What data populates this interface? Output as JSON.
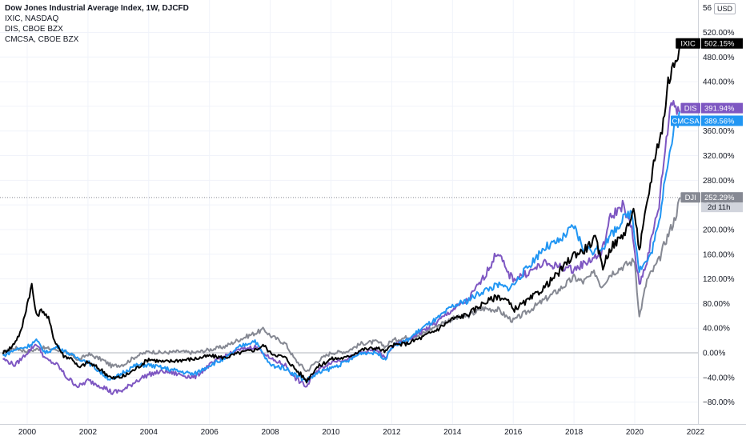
{
  "legend": {
    "main": "Dow Jones Industrial Average Index, 1W, DJCFD",
    "items": [
      "IXIC, NASDAQ",
      "DIS, CBOE BZX",
      "CMCSA, CBOE BZX"
    ]
  },
  "currency_label": "USD",
  "top_partial_tick": "56",
  "last_x_label": "2022",
  "price_tags": [
    {
      "symbol": "IXIC",
      "value": "502.15%",
      "bg": "#000000",
      "color": "#ffffff"
    },
    {
      "symbol": "DIS",
      "value": "391.94%",
      "bg": "#7e57c2",
      "color": "#ffffff"
    },
    {
      "symbol": "CMCSA",
      "value": "389.56%",
      "bg": "#2196f3",
      "color": "#ffffff"
    },
    {
      "symbol": "DJI",
      "value": "252.29%",
      "bg": "#868993",
      "color": "#ffffff",
      "sub": "2d 11h"
    }
  ],
  "chart_data": {
    "type": "line",
    "ylabel_unit": "%",
    "ylim": [
      -100,
      560
    ],
    "xlim": [
      1999.2,
      2022
    ],
    "y_ticks": [
      "520.00%",
      "480.00%",
      "440.00%",
      "400.00%",
      "360.00%",
      "320.00%",
      "280.00%",
      "240.00%",
      "200.00%",
      "160.00%",
      "120.00%",
      "80.00%",
      "40.00%",
      "0.00%",
      "−40.00%",
      "−80.00%"
    ],
    "y_tick_values": [
      520,
      480,
      440,
      400,
      360,
      320,
      280,
      240,
      200,
      160,
      120,
      80,
      40,
      0,
      -40,
      -80
    ],
    "x_ticks": [
      "2000",
      "2002",
      "2004",
      "2006",
      "2008",
      "2010",
      "2012",
      "2014",
      "2016",
      "2018",
      "2020"
    ],
    "x_tick_values": [
      2000,
      2002,
      2004,
      2006,
      2008,
      2010,
      2012,
      2014,
      2016,
      2018,
      2020
    ],
    "grid": true,
    "series": [
      {
        "name": "DJI",
        "color": "#868993",
        "points": [
          [
            1999.2,
            0
          ],
          [
            1999.6,
            8
          ],
          [
            2000.0,
            2
          ],
          [
            2000.5,
            8
          ],
          [
            2001.0,
            5
          ],
          [
            2001.5,
            -5
          ],
          [
            2001.7,
            -12
          ],
          [
            2002.0,
            -2
          ],
          [
            2002.5,
            -12
          ],
          [
            2002.8,
            -22
          ],
          [
            2003.2,
            -18
          ],
          [
            2003.6,
            -5
          ],
          [
            2004.0,
            2
          ],
          [
            2004.5,
            0
          ],
          [
            2005.0,
            2
          ],
          [
            2005.5,
            0
          ],
          [
            2006.0,
            5
          ],
          [
            2006.5,
            10
          ],
          [
            2007.0,
            22
          ],
          [
            2007.5,
            32
          ],
          [
            2007.8,
            38
          ],
          [
            2008.0,
            28
          ],
          [
            2008.5,
            15
          ],
          [
            2008.8,
            -10
          ],
          [
            2009.2,
            -30
          ],
          [
            2009.5,
            -15
          ],
          [
            2010.0,
            0
          ],
          [
            2010.5,
            2
          ],
          [
            2011.0,
            15
          ],
          [
            2011.5,
            18
          ],
          [
            2011.8,
            10
          ],
          [
            2012.0,
            20
          ],
          [
            2012.5,
            25
          ],
          [
            2013.0,
            30
          ],
          [
            2013.5,
            45
          ],
          [
            2014.0,
            55
          ],
          [
            2014.5,
            60
          ],
          [
            2015.0,
            72
          ],
          [
            2015.5,
            70
          ],
          [
            2015.8,
            58
          ],
          [
            2016.0,
            52
          ],
          [
            2016.5,
            68
          ],
          [
            2017.0,
            85
          ],
          [
            2017.5,
            102
          ],
          [
            2018.0,
            122
          ],
          [
            2018.3,
            115
          ],
          [
            2018.7,
            130
          ],
          [
            2018.9,
            108
          ],
          [
            2019.2,
            128
          ],
          [
            2019.6,
            140
          ],
          [
            2020.0,
            150
          ],
          [
            2020.15,
            58
          ],
          [
            2020.4,
            118
          ],
          [
            2020.8,
            150
          ],
          [
            2021.0,
            180
          ],
          [
            2021.3,
            215
          ],
          [
            2021.5,
            252
          ]
        ]
      },
      {
        "name": "IXIC",
        "color": "#000000",
        "points": [
          [
            1999.2,
            0
          ],
          [
            1999.5,
            10
          ],
          [
            1999.8,
            35
          ],
          [
            2000.0,
            80
          ],
          [
            2000.15,
            110
          ],
          [
            2000.3,
            60
          ],
          [
            2000.5,
            70
          ],
          [
            2000.7,
            55
          ],
          [
            2000.9,
            20
          ],
          [
            2001.2,
            -5
          ],
          [
            2001.5,
            -10
          ],
          [
            2001.7,
            -25
          ],
          [
            2002.0,
            -15
          ],
          [
            2002.5,
            -30
          ],
          [
            2002.8,
            -42
          ],
          [
            2003.2,
            -38
          ],
          [
            2003.6,
            -25
          ],
          [
            2004.0,
            -10
          ],
          [
            2004.5,
            -15
          ],
          [
            2005.0,
            -12
          ],
          [
            2005.5,
            -10
          ],
          [
            2006.0,
            -5
          ],
          [
            2006.5,
            -8
          ],
          [
            2007.0,
            0
          ],
          [
            2007.5,
            5
          ],
          [
            2007.8,
            12
          ],
          [
            2008.0,
            0
          ],
          [
            2008.5,
            -8
          ],
          [
            2008.8,
            -25
          ],
          [
            2009.2,
            -45
          ],
          [
            2009.5,
            -25
          ],
          [
            2010.0,
            -10
          ],
          [
            2010.5,
            -8
          ],
          [
            2011.0,
            5
          ],
          [
            2011.5,
            8
          ],
          [
            2011.8,
            2
          ],
          [
            2012.0,
            12
          ],
          [
            2012.5,
            15
          ],
          [
            2013.0,
            25
          ],
          [
            2013.5,
            38
          ],
          [
            2014.0,
            55
          ],
          [
            2014.5,
            62
          ],
          [
            2015.0,
            80
          ],
          [
            2015.5,
            92
          ],
          [
            2015.8,
            85
          ],
          [
            2016.0,
            70
          ],
          [
            2016.5,
            85
          ],
          [
            2017.0,
            105
          ],
          [
            2017.5,
            130
          ],
          [
            2018.0,
            160
          ],
          [
            2018.3,
            165
          ],
          [
            2018.7,
            185
          ],
          [
            2018.95,
            140
          ],
          [
            2019.2,
            170
          ],
          [
            2019.6,
            190
          ],
          [
            2020.0,
            230
          ],
          [
            2020.15,
            165
          ],
          [
            2020.4,
            240
          ],
          [
            2020.7,
            330
          ],
          [
            2020.9,
            360
          ],
          [
            2021.1,
            440
          ],
          [
            2021.3,
            470
          ],
          [
            2021.5,
            502
          ]
        ]
      },
      {
        "name": "DIS",
        "color": "#7e57c2",
        "points": [
          [
            1999.2,
            -10
          ],
          [
            1999.6,
            -20
          ],
          [
            2000.0,
            0
          ],
          [
            2000.3,
            15
          ],
          [
            2000.6,
            -10
          ],
          [
            2001.0,
            -20
          ],
          [
            2001.3,
            -40
          ],
          [
            2001.7,
            -55
          ],
          [
            2002.0,
            -45
          ],
          [
            2002.5,
            -55
          ],
          [
            2002.8,
            -65
          ],
          [
            2003.2,
            -60
          ],
          [
            2003.6,
            -45
          ],
          [
            2004.0,
            -35
          ],
          [
            2004.5,
            -30
          ],
          [
            2005.0,
            -35
          ],
          [
            2005.5,
            -40
          ],
          [
            2006.0,
            -20
          ],
          [
            2006.5,
            -5
          ],
          [
            2007.0,
            5
          ],
          [
            2007.5,
            10
          ],
          [
            2007.8,
            0
          ],
          [
            2008.0,
            -10
          ],
          [
            2008.5,
            -20
          ],
          [
            2008.8,
            -40
          ],
          [
            2009.2,
            -55
          ],
          [
            2009.5,
            -30
          ],
          [
            2010.0,
            -15
          ],
          [
            2010.5,
            -10
          ],
          [
            2011.0,
            0
          ],
          [
            2011.5,
            5
          ],
          [
            2011.8,
            -10
          ],
          [
            2012.0,
            10
          ],
          [
            2012.5,
            20
          ],
          [
            2013.0,
            35
          ],
          [
            2013.5,
            50
          ],
          [
            2014.0,
            70
          ],
          [
            2014.5,
            85
          ],
          [
            2015.0,
            120
          ],
          [
            2015.5,
            165
          ],
          [
            2015.8,
            130
          ],
          [
            2016.0,
            120
          ],
          [
            2016.5,
            130
          ],
          [
            2017.0,
            145
          ],
          [
            2017.5,
            140
          ],
          [
            2018.0,
            135
          ],
          [
            2018.5,
            150
          ],
          [
            2018.9,
            160
          ],
          [
            2019.2,
            220
          ],
          [
            2019.6,
            240
          ],
          [
            2019.9,
            200
          ],
          [
            2020.15,
            110
          ],
          [
            2020.4,
            150
          ],
          [
            2020.8,
            240
          ],
          [
            2021.0,
            330
          ],
          [
            2021.2,
            410
          ],
          [
            2021.5,
            392
          ]
        ]
      },
      {
        "name": "CMCSA",
        "color": "#2196f3",
        "points": [
          [
            1999.2,
            -5
          ],
          [
            1999.6,
            5
          ],
          [
            2000.0,
            10
          ],
          [
            2000.3,
            20
          ],
          [
            2000.6,
            0
          ],
          [
            2001.0,
            10
          ],
          [
            2001.5,
            -5
          ],
          [
            2002.0,
            -15
          ],
          [
            2002.5,
            -35
          ],
          [
            2002.8,
            -45
          ],
          [
            2003.2,
            -30
          ],
          [
            2003.6,
            -20
          ],
          [
            2004.0,
            -20
          ],
          [
            2004.5,
            -25
          ],
          [
            2005.0,
            -30
          ],
          [
            2005.5,
            -35
          ],
          [
            2006.0,
            -20
          ],
          [
            2006.5,
            -10
          ],
          [
            2007.0,
            10
          ],
          [
            2007.5,
            20
          ],
          [
            2007.8,
            -5
          ],
          [
            2008.0,
            -20
          ],
          [
            2008.5,
            -25
          ],
          [
            2008.8,
            -35
          ],
          [
            2009.2,
            -45
          ],
          [
            2009.5,
            -35
          ],
          [
            2010.0,
            -25
          ],
          [
            2010.5,
            -15
          ],
          [
            2011.0,
            0
          ],
          [
            2011.5,
            0
          ],
          [
            2011.8,
            -10
          ],
          [
            2012.0,
            10
          ],
          [
            2012.5,
            20
          ],
          [
            2013.0,
            40
          ],
          [
            2013.5,
            55
          ],
          [
            2014.0,
            75
          ],
          [
            2014.5,
            85
          ],
          [
            2015.0,
            100
          ],
          [
            2015.5,
            110
          ],
          [
            2015.8,
            105
          ],
          [
            2016.0,
            110
          ],
          [
            2016.5,
            140
          ],
          [
            2017.0,
            170
          ],
          [
            2017.5,
            180
          ],
          [
            2018.0,
            205
          ],
          [
            2018.3,
            170
          ],
          [
            2018.7,
            165
          ],
          [
            2019.0,
            175
          ],
          [
            2019.5,
            210
          ],
          [
            2019.9,
            230
          ],
          [
            2020.15,
            135
          ],
          [
            2020.5,
            155
          ],
          [
            2020.8,
            210
          ],
          [
            2021.0,
            290
          ],
          [
            2021.3,
            360
          ],
          [
            2021.5,
            390
          ]
        ]
      }
    ]
  }
}
